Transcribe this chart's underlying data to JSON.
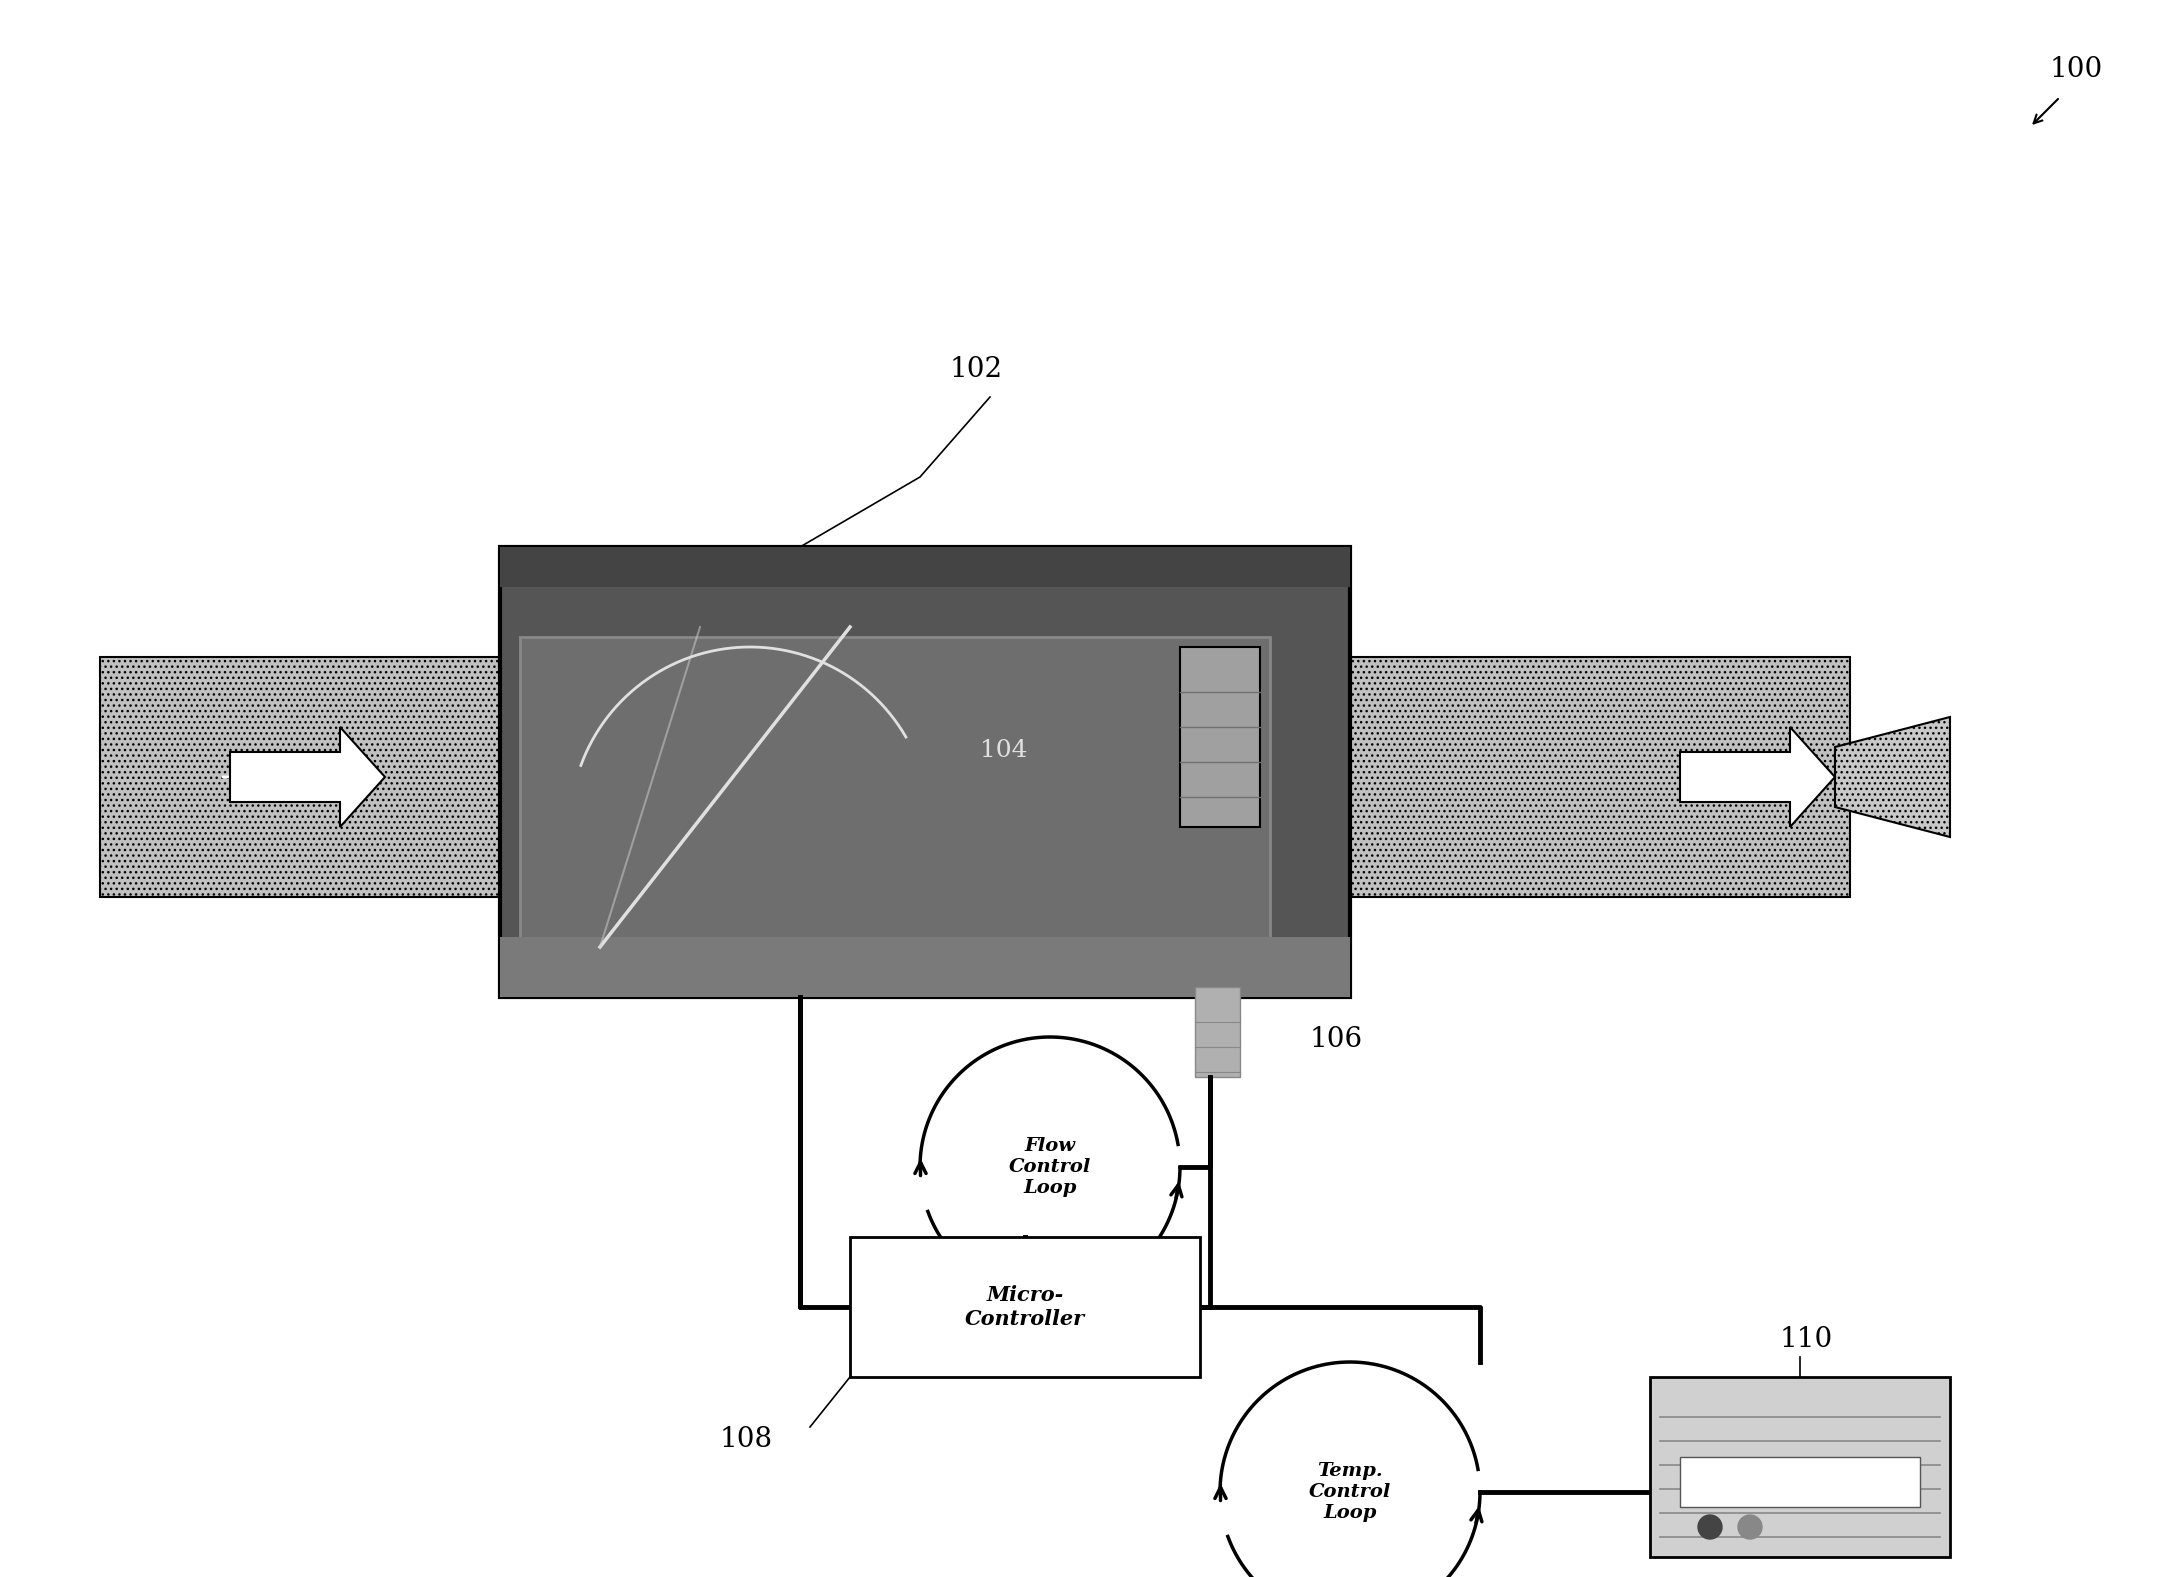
{
  "bg_color": "#ffffff",
  "line_color": "#000000",
  "label_100": "100",
  "label_102": "102",
  "label_104": "104",
  "label_106": "106",
  "label_108": "108",
  "label_110": "110",
  "flow_control_text": "Flow\nControl\nLoop",
  "temp_control_text": "Temp.\nControl\nLoop",
  "micro_controller_text": "Micro-\nController",
  "pipe_fill": "#c8c8c8",
  "pipe_hatch": ".",
  "box_outer_fill": "#404040",
  "box_inner_fill": "#606060",
  "valve_color": "#d0d0d0",
  "sensor_fill": "#a0a0a0"
}
